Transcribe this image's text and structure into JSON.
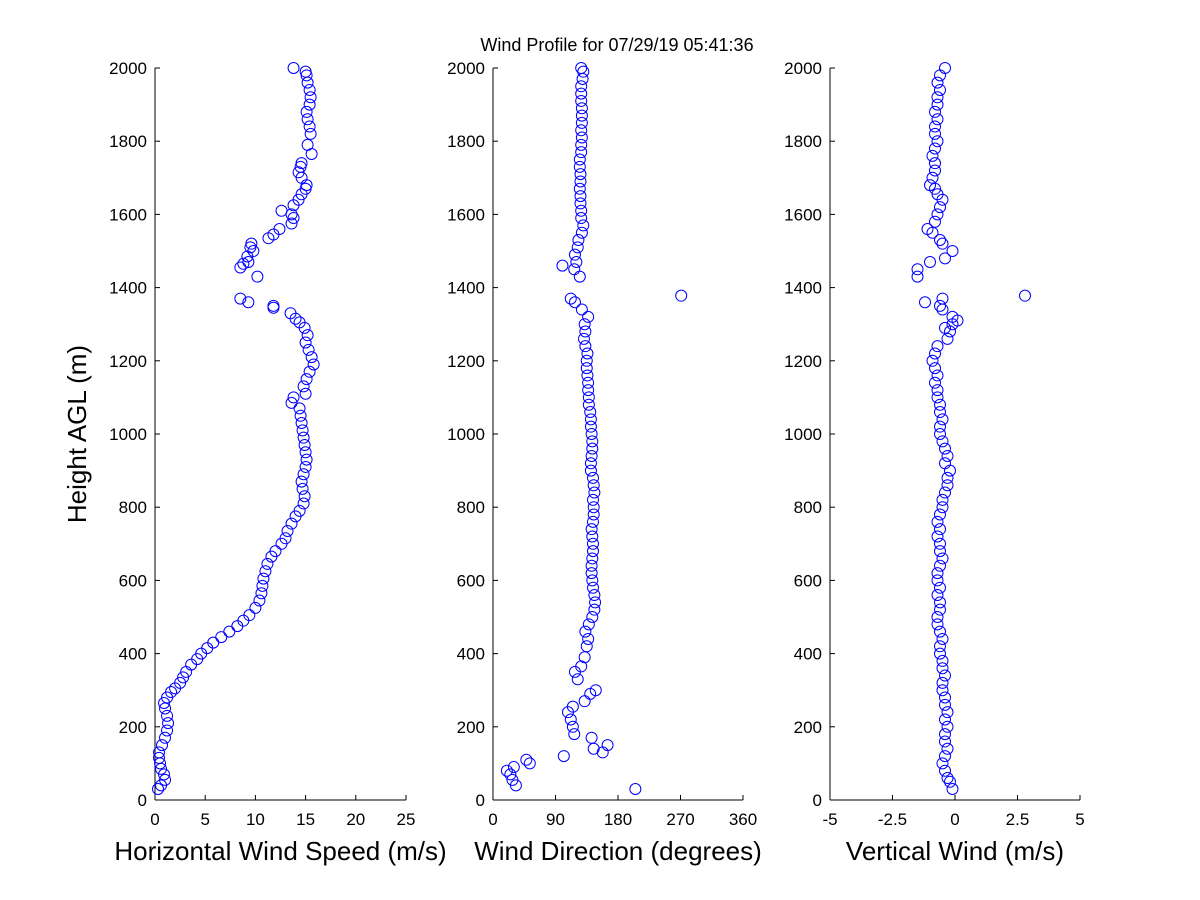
{
  "title": "Wind Profile for  07/29/19 05:41:36",
  "marker_color": "#0000ff",
  "chart_data": [
    {
      "type": "scatter",
      "xlabel": "Horizontal Wind Speed (m/s)",
      "ylabel": "Height AGL (m)",
      "xlim": [
        0,
        25
      ],
      "ylim": [
        0,
        2000
      ],
      "xticks": [
        "0",
        "5",
        "10",
        "15",
        "20",
        "25"
      ],
      "yticks": [
        "0",
        "200",
        "400",
        "600",
        "800",
        "1000",
        "1200",
        "1400",
        "1600",
        "1800",
        "2000"
      ],
      "grid": false,
      "points": [
        [
          0.3,
          30
        ],
        [
          0.6,
          40
        ],
        [
          1.0,
          55
        ],
        [
          0.9,
          70
        ],
        [
          0.6,
          85
        ],
        [
          0.5,
          100
        ],
        [
          0.4,
          115
        ],
        [
          0.4,
          130
        ],
        [
          0.7,
          150
        ],
        [
          1.0,
          170
        ],
        [
          1.2,
          190
        ],
        [
          1.3,
          210
        ],
        [
          1.2,
          230
        ],
        [
          1.0,
          250
        ],
        [
          0.9,
          265
        ],
        [
          1.2,
          280
        ],
        [
          1.6,
          295
        ],
        [
          2.0,
          305
        ],
        [
          2.5,
          320
        ],
        [
          2.8,
          335
        ],
        [
          3.1,
          350
        ],
        [
          3.6,
          370
        ],
        [
          4.2,
          385
        ],
        [
          4.6,
          400
        ],
        [
          5.2,
          415
        ],
        [
          5.8,
          430
        ],
        [
          6.6,
          445
        ],
        [
          7.4,
          460
        ],
        [
          8.2,
          475
        ],
        [
          8.8,
          490
        ],
        [
          9.4,
          505
        ],
        [
          10.0,
          525
        ],
        [
          10.4,
          545
        ],
        [
          10.6,
          565
        ],
        [
          10.7,
          585
        ],
        [
          10.8,
          605
        ],
        [
          11.0,
          625
        ],
        [
          11.2,
          645
        ],
        [
          11.6,
          665
        ],
        [
          12.0,
          680
        ],
        [
          12.6,
          700
        ],
        [
          13.0,
          715
        ],
        [
          13.2,
          735
        ],
        [
          13.6,
          755
        ],
        [
          14.0,
          775
        ],
        [
          14.4,
          790
        ],
        [
          14.8,
          810
        ],
        [
          14.9,
          830
        ],
        [
          14.7,
          850
        ],
        [
          14.6,
          870
        ],
        [
          14.8,
          890
        ],
        [
          15.0,
          910
        ],
        [
          15.1,
          930
        ],
        [
          15.0,
          950
        ],
        [
          14.9,
          970
        ],
        [
          14.8,
          990
        ],
        [
          14.7,
          1010
        ],
        [
          14.6,
          1030
        ],
        [
          14.5,
          1050
        ],
        [
          14.4,
          1070
        ],
        [
          13.6,
          1085
        ],
        [
          13.8,
          1100
        ],
        [
          15.0,
          1110
        ],
        [
          14.8,
          1130
        ],
        [
          15.1,
          1150
        ],
        [
          15.4,
          1170
        ],
        [
          15.8,
          1190
        ],
        [
          15.6,
          1210
        ],
        [
          15.3,
          1230
        ],
        [
          15.0,
          1250
        ],
        [
          15.2,
          1270
        ],
        [
          14.9,
          1290
        ],
        [
          14.4,
          1305
        ],
        [
          14.0,
          1315
        ],
        [
          13.5,
          1330
        ],
        [
          11.8,
          1345
        ],
        [
          11.8,
          1350
        ],
        [
          9.3,
          1360
        ],
        [
          8.5,
          1370
        ],
        [
          10.2,
          1430
        ],
        [
          8.5,
          1455
        ],
        [
          8.8,
          1465
        ],
        [
          9.3,
          1470
        ],
        [
          9.2,
          1485
        ],
        [
          9.8,
          1500
        ],
        [
          9.5,
          1510
        ],
        [
          9.6,
          1520
        ],
        [
          11.3,
          1535
        ],
        [
          11.8,
          1545
        ],
        [
          12.4,
          1560
        ],
        [
          13.6,
          1575
        ],
        [
          13.8,
          1590
        ],
        [
          13.6,
          1600
        ],
        [
          12.6,
          1610
        ],
        [
          13.8,
          1625
        ],
        [
          14.3,
          1640
        ],
        [
          14.6,
          1655
        ],
        [
          15.0,
          1670
        ],
        [
          15.1,
          1680
        ],
        [
          14.6,
          1700
        ],
        [
          14.3,
          1715
        ],
        [
          14.5,
          1730
        ],
        [
          14.6,
          1740
        ],
        [
          15.6,
          1765
        ],
        [
          15.2,
          1790
        ],
        [
          15.5,
          1820
        ],
        [
          15.4,
          1840
        ],
        [
          15.2,
          1860
        ],
        [
          15.1,
          1880
        ],
        [
          15.4,
          1900
        ],
        [
          15.5,
          1920
        ],
        [
          15.4,
          1940
        ],
        [
          15.2,
          1960
        ],
        [
          15.1,
          1980
        ],
        [
          15.0,
          1990
        ],
        [
          13.8,
          2000
        ]
      ]
    },
    {
      "type": "scatter",
      "xlabel": "Wind Direction (degrees)",
      "ylabel": "",
      "xlim": [
        0,
        360
      ],
      "ylim": [
        0,
        2000
      ],
      "xticks": [
        "0",
        "90",
        "180",
        "270",
        "360"
      ],
      "yticks": [
        "0",
        "200",
        "400",
        "600",
        "800",
        "1000",
        "1200",
        "1400",
        "1600",
        "1800",
        "2000"
      ],
      "grid": false,
      "points": [
        [
          205,
          30
        ],
        [
          33,
          40
        ],
        [
          28,
          55
        ],
        [
          25,
          70
        ],
        [
          20,
          80
        ],
        [
          30,
          90
        ],
        [
          53,
          100
        ],
        [
          48,
          110
        ],
        [
          102,
          120
        ],
        [
          158,
          130
        ],
        [
          145,
          140
        ],
        [
          165,
          150
        ],
        [
          142,
          170
        ],
        [
          117,
          180
        ],
        [
          115,
          200
        ],
        [
          112,
          220
        ],
        [
          108,
          240
        ],
        [
          115,
          255
        ],
        [
          132,
          270
        ],
        [
          140,
          290
        ],
        [
          148,
          300
        ],
        [
          122,
          330
        ],
        [
          118,
          350
        ],
        [
          127,
          365
        ],
        [
          132,
          390
        ],
        [
          135,
          420
        ],
        [
          137,
          440
        ],
        [
          133,
          460
        ],
        [
          138,
          480
        ],
        [
          143,
          500
        ],
        [
          146,
          520
        ],
        [
          147,
          540
        ],
        [
          146,
          560
        ],
        [
          144,
          580
        ],
        [
          143,
          600
        ],
        [
          142,
          620
        ],
        [
          142,
          640
        ],
        [
          143,
          660
        ],
        [
          144,
          680
        ],
        [
          144,
          700
        ],
        [
          143,
          720
        ],
        [
          142,
          740
        ],
        [
          144,
          760
        ],
        [
          145,
          780
        ],
        [
          145,
          800
        ],
        [
          144,
          820
        ],
        [
          146,
          840
        ],
        [
          145,
          860
        ],
        [
          144,
          880
        ],
        [
          141,
          900
        ],
        [
          141,
          920
        ],
        [
          142,
          940
        ],
        [
          143,
          960
        ],
        [
          143,
          980
        ],
        [
          142,
          1000
        ],
        [
          141,
          1020
        ],
        [
          141,
          1040
        ],
        [
          140,
          1060
        ],
        [
          138,
          1080
        ],
        [
          138,
          1100
        ],
        [
          137,
          1120
        ],
        [
          137,
          1140
        ],
        [
          136,
          1160
        ],
        [
          135,
          1180
        ],
        [
          135,
          1200
        ],
        [
          136,
          1220
        ],
        [
          133,
          1240
        ],
        [
          131,
          1260
        ],
        [
          133,
          1280
        ],
        [
          132,
          1300
        ],
        [
          137,
          1320
        ],
        [
          128,
          1340
        ],
        [
          118,
          1360
        ],
        [
          112,
          1370
        ],
        [
          271,
          1378
        ],
        [
          100,
          1460
        ],
        [
          125,
          1430
        ],
        [
          117,
          1450
        ],
        [
          120,
          1470
        ],
        [
          118,
          1490
        ],
        [
          122,
          1510
        ],
        [
          123,
          1530
        ],
        [
          128,
          1550
        ],
        [
          130,
          1570
        ],
        [
          127,
          1590
        ],
        [
          127,
          1610
        ],
        [
          126,
          1630
        ],
        [
          126,
          1650
        ],
        [
          125,
          1670
        ],
        [
          126,
          1690
        ],
        [
          126,
          1710
        ],
        [
          125,
          1730
        ],
        [
          125,
          1750
        ],
        [
          127,
          1770
        ],
        [
          127,
          1790
        ],
        [
          128,
          1810
        ],
        [
          127,
          1830
        ],
        [
          128,
          1850
        ],
        [
          128,
          1870
        ],
        [
          128,
          1890
        ],
        [
          127,
          1910
        ],
        [
          127,
          1930
        ],
        [
          127,
          1950
        ],
        [
          129,
          1970
        ],
        [
          130,
          1990
        ],
        [
          127,
          2000
        ]
      ]
    },
    {
      "type": "scatter",
      "xlabel": "Vertical Wind (m/s)",
      "ylabel": "",
      "xlim": [
        -5,
        5
      ],
      "ylim": [
        0,
        2000
      ],
      "xticks": [
        "-5",
        "-2.5",
        "0",
        "2.5",
        "5"
      ],
      "yticks": [
        "0",
        "200",
        "400",
        "600",
        "800",
        "1000",
        "1200",
        "1400",
        "1600",
        "1800",
        "2000"
      ],
      "grid": false,
      "points": [
        [
          -0.1,
          30
        ],
        [
          -0.2,
          50
        ],
        [
          -0.3,
          60
        ],
        [
          -0.4,
          80
        ],
        [
          -0.5,
          100
        ],
        [
          -0.4,
          120
        ],
        [
          -0.3,
          140
        ],
        [
          -0.4,
          160
        ],
        [
          -0.4,
          180
        ],
        [
          -0.3,
          200
        ],
        [
          -0.4,
          220
        ],
        [
          -0.3,
          240
        ],
        [
          -0.4,
          260
        ],
        [
          -0.4,
          280
        ],
        [
          -0.5,
          300
        ],
        [
          -0.5,
          320
        ],
        [
          -0.4,
          340
        ],
        [
          -0.5,
          360
        ],
        [
          -0.5,
          380
        ],
        [
          -0.6,
          400
        ],
        [
          -0.6,
          420
        ],
        [
          -0.5,
          440
        ],
        [
          -0.6,
          460
        ],
        [
          -0.7,
          480
        ],
        [
          -0.7,
          500
        ],
        [
          -0.6,
          520
        ],
        [
          -0.6,
          540
        ],
        [
          -0.7,
          560
        ],
        [
          -0.6,
          580
        ],
        [
          -0.7,
          600
        ],
        [
          -0.7,
          620
        ],
        [
          -0.6,
          640
        ],
        [
          -0.5,
          660
        ],
        [
          -0.6,
          680
        ],
        [
          -0.6,
          700
        ],
        [
          -0.7,
          720
        ],
        [
          -0.6,
          740
        ],
        [
          -0.7,
          760
        ],
        [
          -0.6,
          780
        ],
        [
          -0.5,
          800
        ],
        [
          -0.5,
          820
        ],
        [
          -0.4,
          840
        ],
        [
          -0.3,
          860
        ],
        [
          -0.3,
          880
        ],
        [
          -0.2,
          900
        ],
        [
          -0.4,
          920
        ],
        [
          -0.3,
          940
        ],
        [
          -0.4,
          960
        ],
        [
          -0.5,
          980
        ],
        [
          -0.6,
          1000
        ],
        [
          -0.6,
          1020
        ],
        [
          -0.5,
          1040
        ],
        [
          -0.6,
          1060
        ],
        [
          -0.6,
          1080
        ],
        [
          -0.7,
          1100
        ],
        [
          -0.7,
          1120
        ],
        [
          -0.8,
          1140
        ],
        [
          -0.7,
          1160
        ],
        [
          -0.8,
          1180
        ],
        [
          -0.9,
          1200
        ],
        [
          -0.8,
          1220
        ],
        [
          -0.7,
          1240
        ],
        [
          -0.3,
          1260
        ],
        [
          -0.2,
          1280
        ],
        [
          -0.4,
          1290
        ],
        [
          -0.1,
          1300
        ],
        [
          0.1,
          1310
        ],
        [
          -0.1,
          1320
        ],
        [
          -0.5,
          1340
        ],
        [
          -0.6,
          1350
        ],
        [
          -0.5,
          1370
        ],
        [
          -1.2,
          1360
        ],
        [
          2.8,
          1378
        ],
        [
          -1.5,
          1430
        ],
        [
          -1.5,
          1450
        ],
        [
          -1.0,
          1470
        ],
        [
          -0.4,
          1480
        ],
        [
          -0.1,
          1500
        ],
        [
          -0.5,
          1520
        ],
        [
          -0.6,
          1530
        ],
        [
          -0.9,
          1550
        ],
        [
          -1.1,
          1560
        ],
        [
          -0.8,
          1580
        ],
        [
          -0.7,
          1600
        ],
        [
          -0.6,
          1620
        ],
        [
          -0.5,
          1640
        ],
        [
          -0.7,
          1655
        ],
        [
          -0.8,
          1670
        ],
        [
          -1.0,
          1680
        ],
        [
          -0.9,
          1700
        ],
        [
          -0.8,
          1720
        ],
        [
          -0.8,
          1740
        ],
        [
          -0.9,
          1760
        ],
        [
          -0.8,
          1780
        ],
        [
          -0.7,
          1800
        ],
        [
          -0.8,
          1820
        ],
        [
          -0.8,
          1840
        ],
        [
          -0.7,
          1860
        ],
        [
          -0.8,
          1880
        ],
        [
          -0.7,
          1900
        ],
        [
          -0.7,
          1920
        ],
        [
          -0.6,
          1940
        ],
        [
          -0.7,
          1960
        ],
        [
          -0.6,
          1980
        ],
        [
          -0.4,
          2000
        ]
      ]
    }
  ]
}
